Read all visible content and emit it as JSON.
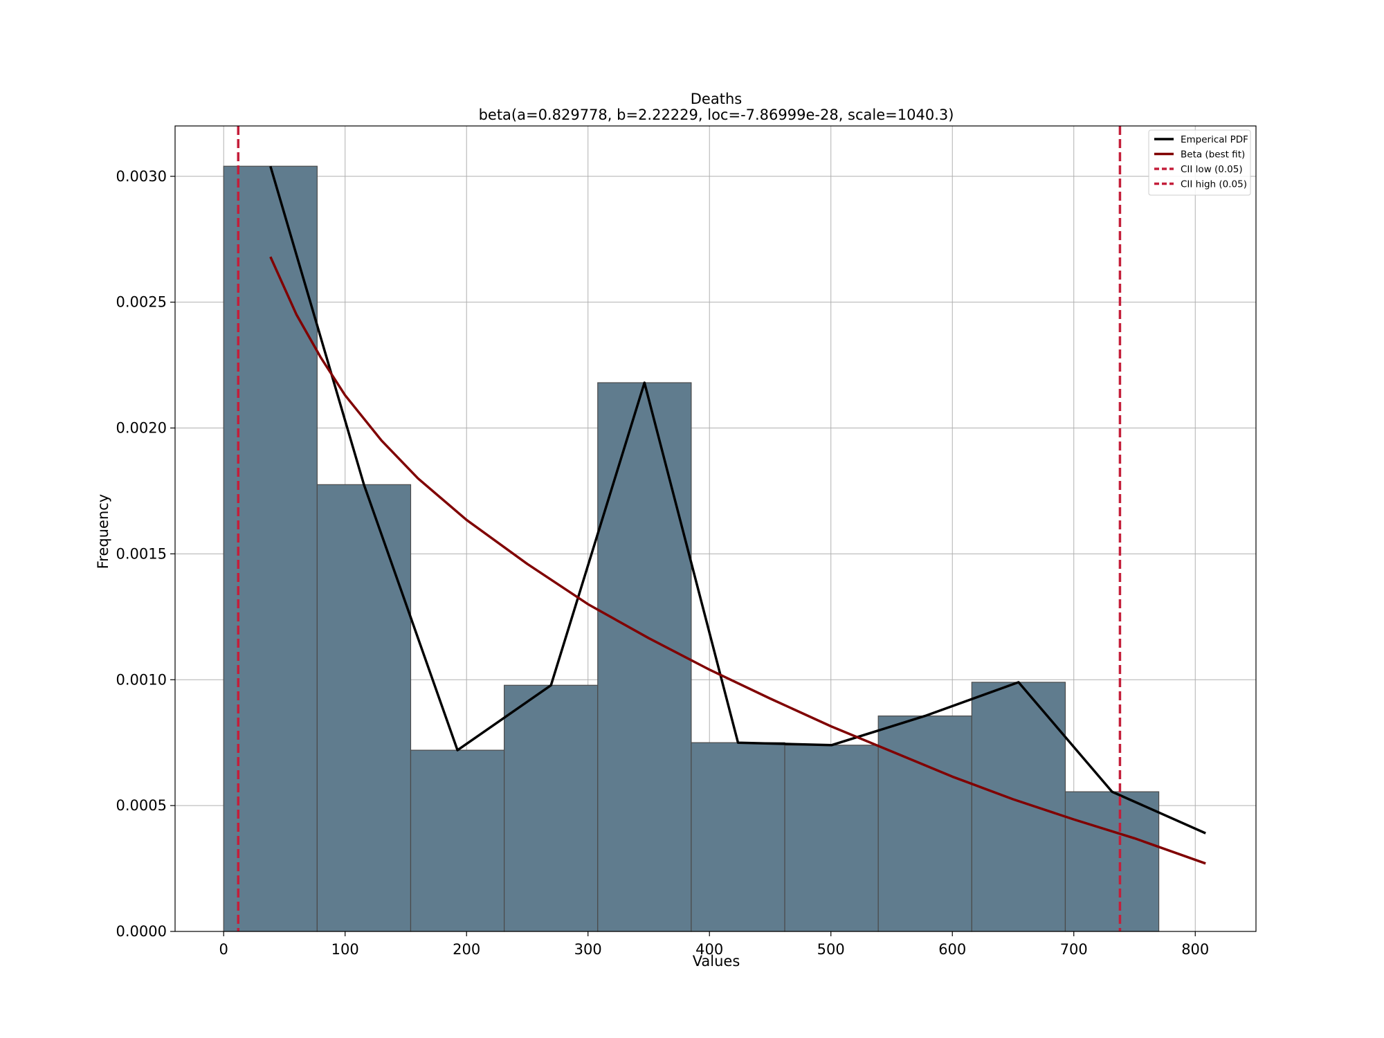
{
  "chart_data": {
    "type": "bar",
    "title": "Deaths",
    "subtitle": "beta(a=0.829778, b=2.22229, loc=-7.86999e-28, scale=1040.3)",
    "xlabel": "Values",
    "ylabel": "Frequency",
    "xlim": [
      -40,
      850
    ],
    "ylim": [
      0,
      0.0032
    ],
    "grid": true,
    "legend_position": "top-right",
    "x_ticks": [
      0,
      100,
      200,
      300,
      400,
      500,
      600,
      700,
      800
    ],
    "x_tick_labels": [
      "0",
      "100",
      "200",
      "300",
      "400",
      "500",
      "600",
      "700",
      "800"
    ],
    "y_ticks": [
      0,
      0.0005,
      0.001,
      0.0015,
      0.002,
      0.0025,
      0.003
    ],
    "y_tick_labels": [
      "0.0000",
      "0.0005",
      "0.0010",
      "0.0015",
      "0.0020",
      "0.0025",
      "0.0030"
    ],
    "histogram": {
      "bin_edges": [
        0,
        77,
        154,
        231,
        308,
        385,
        462,
        539,
        616,
        693,
        770
      ],
      "values": [
        0.00304,
        0.001775,
        0.00072,
        0.000978,
        0.00218,
        0.00075,
        0.00074,
        0.000856,
        0.00099,
        0.000555
      ],
      "color": "#607c8e"
    },
    "series": [
      {
        "name": "Emperical PDF",
        "color": "#000000",
        "x": [
          38.5,
          115.5,
          192.5,
          269.5,
          346.5,
          423.5,
          500.5,
          577.5,
          654.5,
          731.5,
          808.5
        ],
        "y": [
          0.00304,
          0.001775,
          0.00072,
          0.000978,
          0.00218,
          0.00075,
          0.00074,
          0.000856,
          0.00099,
          0.000555,
          0.00039
        ]
      },
      {
        "name": "Beta (best fit)",
        "color": "#800000",
        "x": [
          38.5,
          60,
          80,
          100,
          130,
          160,
          200,
          250,
          300,
          350,
          400,
          450,
          500,
          550,
          600,
          650,
          700,
          750,
          808.5
        ],
        "y": [
          0.00268,
          0.00245,
          0.00228,
          0.00213,
          0.00195,
          0.0018,
          0.001635,
          0.00146,
          0.0013,
          0.001165,
          0.00104,
          0.000925,
          0.000815,
          0.000715,
          0.000615,
          0.000525,
          0.000445,
          0.00037,
          0.00027
        ]
      },
      {
        "name": "CII low (0.05)",
        "color": "#c41e3a",
        "style": "dashed",
        "xv": 12
      },
      {
        "name": "CII high (0.05)",
        "color": "#c41e3a",
        "style": "dashed",
        "xv": 738
      }
    ]
  }
}
